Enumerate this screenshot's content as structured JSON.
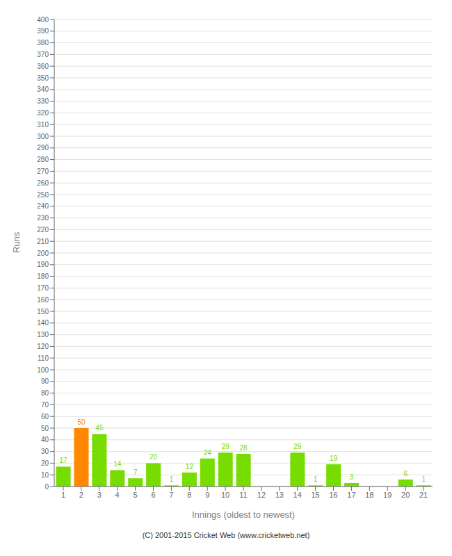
{
  "chart_data": {
    "type": "bar",
    "categories": [
      "1",
      "2",
      "3",
      "4",
      "5",
      "6",
      "7",
      "8",
      "9",
      "10",
      "11",
      "12",
      "13",
      "14",
      "15",
      "16",
      "17",
      "18",
      "19",
      "20",
      "21"
    ],
    "values": [
      17,
      50,
      45,
      14,
      7,
      20,
      1,
      12,
      24,
      29,
      28,
      0,
      0,
      29,
      1,
      19,
      3,
      0,
      0,
      6,
      1
    ],
    "colors": [
      "#77dd00",
      "#ff8800",
      "#77dd00",
      "#77dd00",
      "#77dd00",
      "#77dd00",
      "#77dd00",
      "#77dd00",
      "#77dd00",
      "#77dd00",
      "#77dd00",
      "#77dd00",
      "#77dd00",
      "#77dd00",
      "#77dd00",
      "#77dd00",
      "#77dd00",
      "#77dd00",
      "#77dd00",
      "#77dd00",
      "#77dd00"
    ],
    "x_label": "Innings (oldest to newest)",
    "y_label": "Runs",
    "ylim": [
      0,
      400
    ],
    "yticks": [
      0,
      10,
      20,
      30,
      40,
      50,
      60,
      70,
      80,
      90,
      100,
      110,
      120,
      130,
      140,
      150,
      160,
      170,
      180,
      190,
      200,
      210,
      220,
      230,
      240,
      250,
      260,
      270,
      280,
      290,
      300,
      310,
      320,
      330,
      340,
      350,
      360,
      370,
      380,
      390,
      400
    ],
    "grid": true,
    "data_labels": true,
    "annotations": [
      "(C) 2001-2015 Cricket Web (www.cricketweb.net)"
    ]
  }
}
